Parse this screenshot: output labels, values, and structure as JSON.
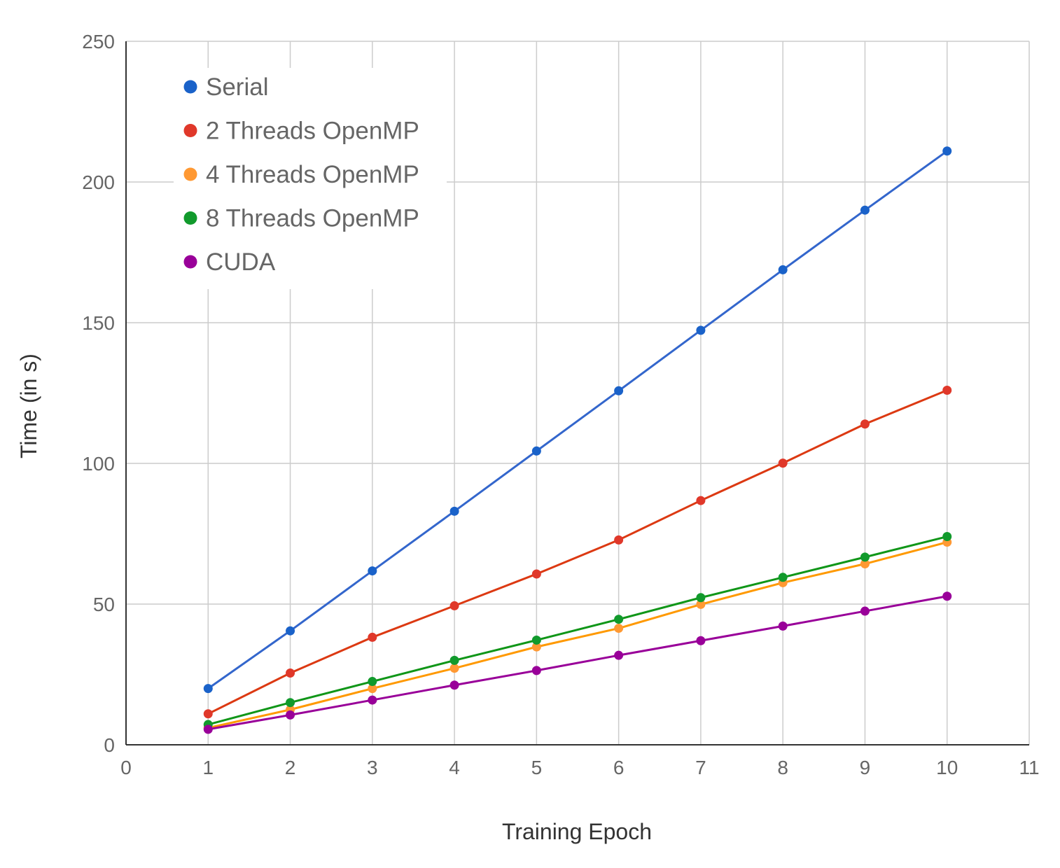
{
  "chart_data": {
    "type": "line",
    "title": "",
    "xlabel": "Training Epoch",
    "ylabel": "Time (in s)",
    "xlim": [
      0,
      11
    ],
    "ylim": [
      0,
      250
    ],
    "x_ticks": [
      "0",
      "1",
      "2",
      "3",
      "4",
      "5",
      "6",
      "7",
      "8",
      "9",
      "10",
      "11"
    ],
    "y_ticks": [
      "0",
      "50",
      "100",
      "150",
      "200",
      "250"
    ],
    "grid": true,
    "legend_position": "top-left",
    "x": [
      1,
      2,
      3,
      4,
      5,
      6,
      7,
      8,
      9,
      10
    ],
    "series": [
      {
        "name": "Serial",
        "color": "#3366cc",
        "marker_color": "#1a62c9",
        "values": [
          20,
          40.5,
          61.8,
          83,
          104.4,
          125.8,
          147.3,
          168.8,
          190,
          211
        ]
      },
      {
        "name": "2 Threads OpenMP",
        "color": "#dc3912",
        "marker_color": "#e0382a",
        "values": [
          11,
          25.5,
          38.2,
          49.4,
          60.7,
          72.8,
          86.8,
          100.1,
          114,
          126
        ]
      },
      {
        "name": "4 Threads OpenMP",
        "color": "#ff9900",
        "marker_color": "#ff9933",
        "values": [
          6,
          12.5,
          20,
          27.2,
          34.8,
          41.4,
          49.9,
          57.6,
          64.3,
          72
        ]
      },
      {
        "name": "8 Threads OpenMP",
        "color": "#109618",
        "marker_color": "#119a2c",
        "values": [
          7.2,
          15,
          22.5,
          30,
          37.2,
          44.6,
          52.3,
          59.5,
          66.7,
          74
        ]
      },
      {
        "name": "CUDA",
        "color": "#990099",
        "marker_color": "#990099",
        "values": [
          5.5,
          10.6,
          15.9,
          21.2,
          26.4,
          31.8,
          37,
          42.2,
          47.5,
          52.8
        ]
      }
    ]
  }
}
